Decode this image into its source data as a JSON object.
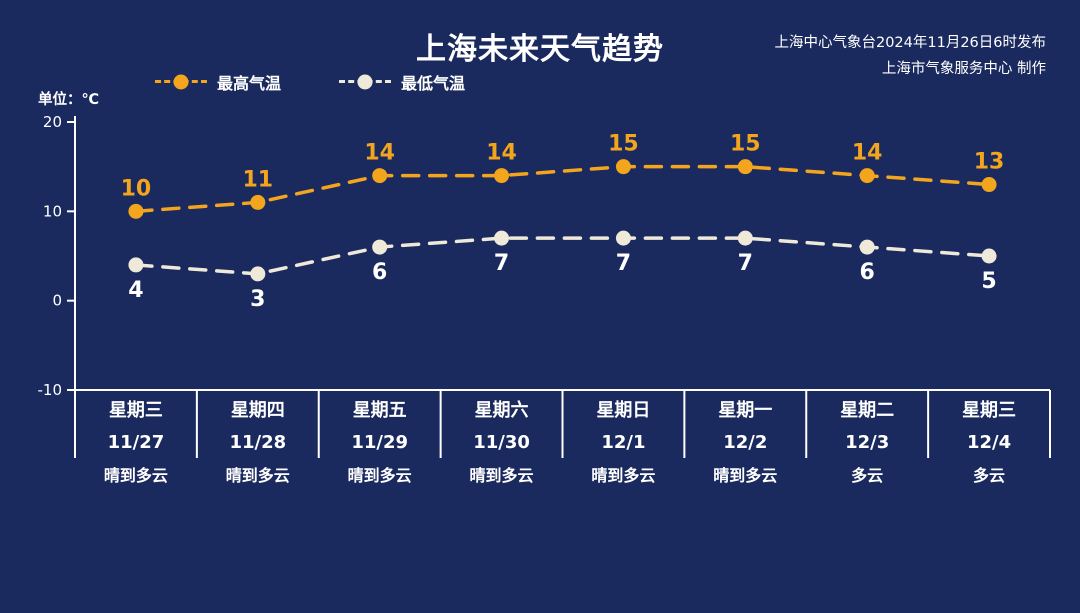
{
  "header": {
    "title": "上海未来天气趋势",
    "publisher_line1": "上海中心气象台2024年11月26日6时发布",
    "publisher_line2": "上海市气象服务中心 制作",
    "unit": "单位：℃"
  },
  "colors": {
    "high": "#f2a51d",
    "low": "#efe9da",
    "axis": "#ffffff",
    "background": "#1b2a5e",
    "text": "#ffffff"
  },
  "legend": {
    "high_label": "最高气温",
    "low_label": "最低气温"
  },
  "chart_data": {
    "type": "line",
    "title": "上海未来天气趋势",
    "xlabel": "",
    "ylabel": "单位：℃",
    "ylim": [
      -10,
      20
    ],
    "yticks": [
      20,
      10,
      0,
      -10
    ],
    "grid": false,
    "legend_position": "top-left",
    "line_style": "dashed",
    "categories": [
      {
        "weekday": "星期三",
        "date": "11/27",
        "weather": "晴到多云"
      },
      {
        "weekday": "星期四",
        "date": "11/28",
        "weather": "晴到多云"
      },
      {
        "weekday": "星期五",
        "date": "11/29",
        "weather": "晴到多云"
      },
      {
        "weekday": "星期六",
        "date": "11/30",
        "weather": "晴到多云"
      },
      {
        "weekday": "星期日",
        "date": "12/1",
        "weather": "晴到多云"
      },
      {
        "weekday": "星期一",
        "date": "12/2",
        "weather": "晴到多云"
      },
      {
        "weekday": "星期二",
        "date": "12/3",
        "weather": "多云"
      },
      {
        "weekday": "星期三",
        "date": "12/4",
        "weather": "多云"
      }
    ],
    "series": [
      {
        "name": "最高气温",
        "color_key": "high",
        "values": [
          10,
          11,
          14,
          14,
          15,
          15,
          14,
          13
        ]
      },
      {
        "name": "最低气温",
        "color_key": "low",
        "values": [
          4,
          3,
          6,
          7,
          7,
          7,
          6,
          5
        ]
      }
    ]
  }
}
